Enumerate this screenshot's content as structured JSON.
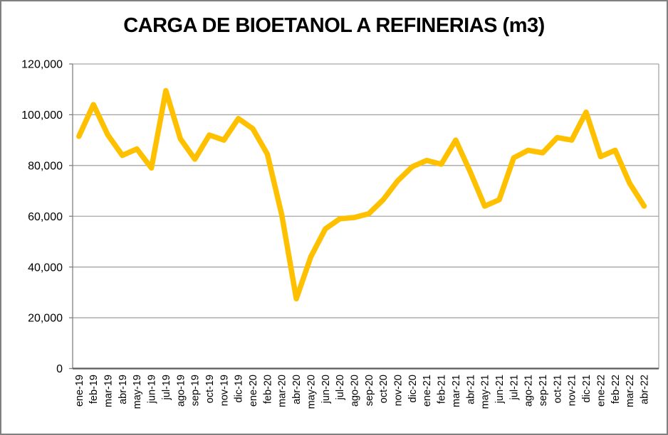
{
  "chart_data": {
    "type": "line",
    "title": "CARGA DE BIOETANOL A REFINERIAS (m3)",
    "xlabel": "",
    "ylabel": "",
    "legend": "none",
    "grid": true,
    "ylim": [
      0,
      120000
    ],
    "categories": [
      "ene-19",
      "feb-19",
      "mar-19",
      "abr-19",
      "may-19",
      "jun-19",
      "jul-19",
      "ago-19",
      "sep-19",
      "oct-19",
      "nov-19",
      "dic-19",
      "ene-20",
      "feb-20",
      "mar-20",
      "abr-20",
      "may-20",
      "jun-20",
      "jul-20",
      "ago-20",
      "sep-20",
      "oct-20",
      "nov-20",
      "dic-20",
      "ene-21",
      "feb-21",
      "mar-21",
      "abr-21",
      "may-21",
      "jun-21",
      "jul-21",
      "ago-21",
      "sep-21",
      "oct-21",
      "nov-21",
      "dic-21",
      "ene-22",
      "feb-22",
      "mar-22",
      "abr-22"
    ],
    "values": [
      91500,
      104000,
      92000,
      84000,
      86500,
      79000,
      109500,
      90500,
      82500,
      92000,
      90000,
      98500,
      94500,
      84500,
      60500,
      27500,
      44000,
      55000,
      59000,
      59500,
      61000,
      66500,
      74000,
      79500,
      82000,
      80500,
      90000,
      77500,
      64000,
      66500,
      83000,
      86000,
      85000,
      91000,
      90000,
      101000,
      83500,
      86000,
      73000,
      64000
    ],
    "yticks": [
      {
        "value": 0,
        "label": "0"
      },
      {
        "value": 20000,
        "label": "20,000"
      },
      {
        "value": 40000,
        "label": "40,000"
      },
      {
        "value": 60000,
        "label": "60,000"
      },
      {
        "value": 80000,
        "label": "80,000"
      },
      {
        "value": 100000,
        "label": "100,000"
      },
      {
        "value": 120000,
        "label": "120,000"
      }
    ]
  },
  "colors": {
    "line": "#FFC000",
    "gridline": "#A6A6A6",
    "axis": "#808080",
    "axis_bottom": "#595959",
    "text": "#000000",
    "frame_border": "#808080",
    "background": "#FFFFFF"
  }
}
